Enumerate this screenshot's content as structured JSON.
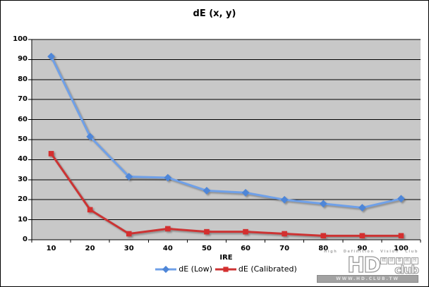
{
  "title": "dE (x, y)",
  "chart_data": {
    "type": "line",
    "title": "dE (x, y)",
    "xlabel": "IRE",
    "x": [
      10,
      20,
      30,
      40,
      50,
      60,
      70,
      80,
      90,
      100
    ],
    "xticks": [
      "10",
      "20",
      "30",
      "40",
      "50",
      "60",
      "70",
      "80",
      "90",
      "100"
    ],
    "yticks": [
      "0",
      "10",
      "20",
      "30",
      "40",
      "50",
      "60",
      "70",
      "80",
      "90",
      "100"
    ],
    "ylim": [
      0,
      100
    ],
    "grid": "horizontal",
    "legend_position": "bottom-center",
    "plot_bg": "#C8C8C8",
    "gridline_color": "#000000",
    "axis_color": "#000000",
    "series": [
      {
        "name": "dE (Low)",
        "color": "#6FA0E8",
        "marker": "diamond",
        "marker_color": "#4E86D8",
        "values": [
          91.5,
          51.5,
          31.5,
          31,
          24.5,
          23.5,
          20,
          18,
          16,
          20.5
        ]
      },
      {
        "name": "dE (Calibrated)",
        "color": "#CC3333",
        "marker": "square",
        "marker_color": "#D42F2F",
        "values": [
          43,
          15,
          3,
          5.5,
          4,
          4,
          3,
          2,
          2,
          2
        ]
      }
    ]
  },
  "watermark": {
    "tagline": "High Definition Vision Club",
    "logo_hd": "HD",
    "logo_club": "club",
    "logo_cjk": [
      "精",
      "研",
      "事",
      "務",
      "所"
    ],
    "url": "WWW.HD.CLUB.TW"
  }
}
